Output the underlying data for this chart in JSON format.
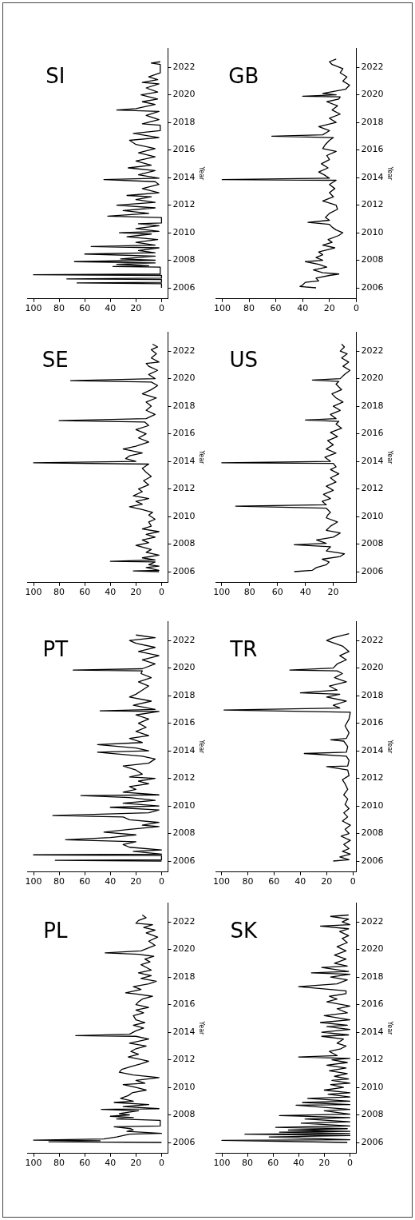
{
  "chart_data": [
    {
      "type": "line",
      "title": "PL",
      "ylabel": "Year",
      "ylim": [
        2005.2,
        2023.4
      ],
      "yticks": [
        2006,
        2008,
        2010,
        2012,
        2014,
        2016,
        2018,
        2020,
        2022
      ],
      "xlim": [
        105,
        -5
      ],
      "xticks": [
        0,
        20,
        40,
        60,
        80,
        100
      ],
      "color": "#000000",
      "values": [
        2006.0,
        2006.05,
        2006.12,
        2006.17,
        2006.25,
        2006.4,
        2006.5,
        2006.6,
        2006.66,
        2006.8,
        2006.9,
        2007.0,
        2007.14,
        2007.2,
        2007.6,
        2007.7,
        2007.8,
        2007.9,
        2008.0,
        2008.1,
        2008.3,
        2008.4,
        2008.45,
        2008.6,
        2008.75,
        2008.9,
        2009.0,
        2009.2,
        2009.4,
        2009.6,
        2009.8,
        2010.0,
        2010.2,
        2010.3,
        2010.5,
        2010.7,
        2010.9,
        2011.1,
        2011.3,
        2011.5,
        2011.7,
        2011.9,
        2012.1,
        2012.2,
        2012.4,
        2012.6,
        2012.8,
        2013.0,
        2013.2,
        2013.5,
        2013.7,
        2013.75,
        2013.85,
        2014.1,
        2014.3,
        2014.5,
        2014.7,
        2014.9,
        2015.2,
        2015.4,
        2015.6,
        2015.8,
        2016.0,
        2016.2,
        2016.4,
        2016.6,
        2016.75,
        2016.85,
        2017.1,
        2017.3,
        2017.5,
        2017.7,
        2017.9,
        2018.1,
        2018.3,
        2018.5,
        2018.7,
        2018.9,
        2019.1,
        2019.3,
        2019.5,
        2019.65,
        2019.75,
        2019.9,
        2020.3,
        2020.6,
        2020.9,
        2021.2,
        2021.4,
        2021.6,
        2021.8,
        2021.9,
        2022.1,
        2022.3,
        2022.5
      ],
      "x": [
        0,
        88,
        48,
        100,
        45,
        35,
        30,
        25,
        0,
        27,
        22,
        24,
        37,
        1,
        1,
        35,
        22,
        40,
        25,
        33,
        18,
        47,
        2,
        30,
        10,
        37,
        22,
        32,
        26,
        23,
        12,
        20,
        30,
        13,
        20,
        2,
        22,
        33,
        31,
        24,
        16,
        10,
        20,
        26,
        18,
        24,
        20,
        12,
        25,
        10,
        20,
        67,
        25,
        20,
        14,
        22,
        13,
        20,
        22,
        14,
        20,
        10,
        20,
        18,
        15,
        7,
        18,
        28,
        16,
        22,
        10,
        4,
        16,
        8,
        18,
        8,
        12,
        16,
        9,
        13,
        6,
        18,
        44,
        16,
        5,
        10,
        3,
        12,
        5,
        14,
        7,
        20,
        18,
        12,
        15
      ]
    },
    {
      "type": "line",
      "title": "PT",
      "ylabel": "Year",
      "ylim": [
        2005.2,
        2023.4
      ],
      "yticks": [
        2006,
        2008,
        2010,
        2012,
        2014,
        2016,
        2018,
        2020,
        2022
      ],
      "xlim": [
        105,
        -5
      ],
      "xticks": [
        0,
        20,
        40,
        60,
        80,
        100
      ],
      "color": "#000000",
      "values": [
        2006.0,
        2006.05,
        2006.1,
        2006.4,
        2006.45,
        2006.5,
        2006.7,
        2006.8,
        2007.0,
        2007.2,
        2007.4,
        2007.55,
        2007.7,
        2007.9,
        2008.1,
        2008.3,
        2008.5,
        2008.6,
        2008.8,
        2009.0,
        2009.2,
        2009.3,
        2009.5,
        2009.7,
        2009.9,
        2010.0,
        2010.2,
        2010.4,
        2010.6,
        2010.75,
        2010.8,
        2011.0,
        2011.2,
        2011.4,
        2011.6,
        2011.8,
        2012.0,
        2012.1,
        2012.3,
        2012.6,
        2012.9,
        2013.1,
        2013.4,
        2013.6,
        2013.9,
        2014.0,
        2014.2,
        2014.45,
        2014.6,
        2014.9,
        2015.1,
        2015.4,
        2015.7,
        2016.0,
        2016.3,
        2016.6,
        2016.85,
        2016.9,
        2017.0,
        2017.3,
        2017.6,
        2017.9,
        2018.1,
        2018.4,
        2018.7,
        2019.0,
        2019.3,
        2019.6,
        2019.8,
        2019.85,
        2019.95,
        2020.3,
        2020.6,
        2020.9,
        2021.2,
        2021.5,
        2021.8,
        2022.0,
        2022.2,
        2022.4
      ],
      "x": [
        0,
        83,
        0,
        0,
        100,
        0,
        22,
        0,
        25,
        30,
        20,
        75,
        40,
        20,
        45,
        25,
        2,
        15,
        2,
        25,
        30,
        85,
        10,
        2,
        40,
        2,
        30,
        5,
        25,
        63,
        2,
        30,
        20,
        25,
        10,
        18,
        5,
        25,
        15,
        20,
        30,
        10,
        5,
        15,
        50,
        10,
        20,
        50,
        15,
        25,
        10,
        20,
        12,
        18,
        10,
        20,
        2,
        48,
        5,
        22,
        8,
        25,
        20,
        15,
        10,
        18,
        8,
        16,
        15,
        69,
        15,
        5,
        15,
        2,
        18,
        5,
        20,
        25,
        5,
        20
      ]
    },
    {
      "type": "line",
      "title": "SE",
      "ylabel": "Year",
      "ylim": [
        2005.2,
        2023.4
      ],
      "yticks": [
        2006,
        2008,
        2010,
        2012,
        2014,
        2016,
        2018,
        2020,
        2022
      ],
      "xlim": [
        105,
        -5
      ],
      "xticks": [
        0,
        20,
        40,
        60,
        80,
        100
      ],
      "color": "#000000",
      "values": [
        2006.0,
        2006.05,
        2006.1,
        2006.3,
        2006.4,
        2006.5,
        2006.7,
        2006.75,
        2006.85,
        2007.0,
        2007.2,
        2007.4,
        2007.6,
        2007.9,
        2008.1,
        2008.3,
        2008.5,
        2008.7,
        2008.9,
        2009.1,
        2009.3,
        2009.6,
        2009.8,
        2010.1,
        2010.3,
        2010.5,
        2010.7,
        2010.9,
        2011.1,
        2011.3,
        2011.5,
        2011.8,
        2012.0,
        2012.3,
        2012.6,
        2012.9,
        2013.2,
        2013.5,
        2013.8,
        2013.9,
        2014.0,
        2014.2,
        2014.4,
        2014.6,
        2014.9,
        2015.1,
        2015.4,
        2015.7,
        2016.0,
        2016.3,
        2016.6,
        2016.85,
        2016.95,
        2017.1,
        2017.4,
        2017.7,
        2018.0,
        2018.3,
        2018.6,
        2018.9,
        2019.2,
        2019.5,
        2019.75,
        2019.85,
        2020.0,
        2020.3,
        2020.6,
        2020.9,
        2021.1,
        2021.2,
        2021.5,
        2021.8,
        2022.1,
        2022.3,
        2022.5
      ],
      "x": [
        2,
        22,
        2,
        12,
        2,
        10,
        5,
        40,
        5,
        15,
        2,
        12,
        8,
        20,
        10,
        15,
        5,
        12,
        2,
        15,
        8,
        10,
        5,
        10,
        7,
        15,
        25,
        15,
        20,
        10,
        22,
        15,
        18,
        10,
        14,
        8,
        12,
        15,
        10,
        100,
        20,
        28,
        25,
        15,
        30,
        20,
        10,
        18,
        12,
        20,
        10,
        13,
        80,
        12,
        5,
        12,
        8,
        12,
        4,
        15,
        8,
        3,
        8,
        71,
        5,
        10,
        3,
        10,
        12,
        2,
        8,
        4,
        8,
        3,
        7
      ]
    },
    {
      "type": "line",
      "title": "SI",
      "ylabel": "Year",
      "ylim": [
        2005.2,
        2023.4
      ],
      "yticks": [
        2006,
        2008,
        2010,
        2012,
        2014,
        2016,
        2018,
        2020,
        2022
      ],
      "xlim": [
        105,
        -5
      ],
      "xticks": [
        0,
        20,
        40,
        60,
        80,
        100
      ],
      "color": "#000000",
      "values": [
        2006.0,
        2006.3,
        2006.35,
        2006.4,
        2006.6,
        2006.65,
        2006.7,
        2006.9,
        2006.95,
        2007.0,
        2007.5,
        2007.55,
        2007.6,
        2007.7,
        2007.8,
        2007.9,
        2008.0,
        2008.1,
        2008.3,
        2008.45,
        2008.55,
        2008.7,
        2008.9,
        2009.0,
        2009.1,
        2009.3,
        2009.5,
        2009.7,
        2009.9,
        2010.0,
        2010.1,
        2010.3,
        2010.5,
        2010.65,
        2010.7,
        2011.1,
        2011.2,
        2011.4,
        2011.6,
        2011.8,
        2012.0,
        2012.2,
        2012.4,
        2012.6,
        2012.7,
        2012.9,
        2013.2,
        2013.5,
        2013.7,
        2013.85,
        2013.95,
        2014.2,
        2014.5,
        2014.7,
        2014.9,
        2015.2,
        2015.5,
        2015.8,
        2016.1,
        2016.4,
        2016.7,
        2016.9,
        2017.2,
        2017.4,
        2017.8,
        2017.9,
        2018.2,
        2018.5,
        2018.8,
        2018.9,
        2019.0,
        2019.3,
        2019.5,
        2019.7,
        2020.0,
        2020.2,
        2020.5,
        2020.8,
        2020.9,
        2021.1,
        2021.3,
        2021.6,
        2022.2,
        2022.3,
        2022.4
      ],
      "x": [
        0,
        0,
        66,
        0,
        0,
        74,
        0,
        0,
        100,
        1,
        1,
        38,
        10,
        35,
        5,
        68,
        5,
        32,
        5,
        60,
        5,
        18,
        2,
        55,
        5,
        20,
        3,
        27,
        8,
        33,
        2,
        20,
        2,
        18,
        0,
        0,
        42,
        10,
        30,
        5,
        35,
        5,
        20,
        8,
        27,
        2,
        15,
        2,
        5,
        45,
        2,
        18,
        5,
        26,
        8,
        20,
        5,
        18,
        5,
        20,
        25,
        2,
        22,
        1,
        1,
        15,
        2,
        12,
        2,
        35,
        20,
        5,
        15,
        3,
        16,
        3,
        12,
        2,
        15,
        3,
        10,
        1,
        1,
        8,
        1
      ]
    },
    {
      "type": "line",
      "title": "SK",
      "ylabel": "Year",
      "ylim": [
        2005.2,
        2023.4
      ],
      "yticks": [
        2006,
        2008,
        2010,
        2012,
        2014,
        2016,
        2018,
        2020,
        2022
      ],
      "xlim": [
        105,
        -5
      ],
      "xticks": [
        0,
        20,
        40,
        60,
        80,
        100
      ],
      "color": "#000000",
      "values": [
        2006.0,
        2006.15,
        2006.2,
        2006.4,
        2006.5,
        2006.6,
        2006.65,
        2006.75,
        2006.8,
        2006.9,
        2007.0,
        2007.1,
        2007.2,
        2007.4,
        2007.5,
        2007.7,
        2007.8,
        2007.95,
        2008.05,
        2008.3,
        2008.4,
        2008.7,
        2008.75,
        2008.9,
        2009.0,
        2009.2,
        2009.3,
        2009.5,
        2009.6,
        2009.8,
        2010.0,
        2010.2,
        2010.3,
        2010.5,
        2010.6,
        2010.8,
        2011.0,
        2011.2,
        2011.4,
        2011.6,
        2011.8,
        2012.0,
        2012.1,
        2012.2,
        2012.3,
        2012.6,
        2012.8,
        2013.0,
        2013.2,
        2013.5,
        2013.7,
        2013.8,
        2014.0,
        2014.2,
        2014.4,
        2014.5,
        2014.7,
        2014.9,
        2015.2,
        2015.4,
        2015.7,
        2015.9,
        2016.2,
        2016.4,
        2016.6,
        2016.8,
        2017.0,
        2017.3,
        2017.5,
        2017.8,
        2018.0,
        2018.2,
        2018.3,
        2018.4,
        2018.7,
        2018.8,
        2019.0,
        2019.3,
        2019.6,
        2019.9,
        2020.2,
        2020.5,
        2020.8,
        2021.0,
        2021.3,
        2021.5,
        2021.7,
        2021.8,
        2022.0,
        2022.2,
        2022.4,
        2022.5
      ],
      "x": [
        2,
        100,
        0,
        63,
        0,
        82,
        0,
        55,
        0,
        48,
        2,
        58,
        0,
        38,
        0,
        35,
        0,
        55,
        0,
        20,
        0,
        42,
        0,
        37,
        0,
        33,
        0,
        17,
        0,
        20,
        5,
        15,
        0,
        14,
        1,
        12,
        2,
        16,
        3,
        18,
        2,
        14,
        0,
        40,
        10,
        16,
        7,
        3,
        10,
        5,
        22,
        1,
        22,
        0,
        18,
        2,
        23,
        0,
        20,
        2,
        10,
        0,
        18,
        10,
        16,
        3,
        3,
        40,
        10,
        2,
        15,
        0,
        30,
        1,
        22,
        2,
        12,
        3,
        12,
        3,
        10,
        2,
        6,
        1,
        8,
        1,
        23,
        0,
        6,
        1,
        15,
        1
      ]
    },
    {
      "type": "line",
      "title": "TR",
      "ylabel": "Year",
      "ylim": [
        2005.2,
        2023.4
      ],
      "yticks": [
        2006,
        2008,
        2010,
        2012,
        2014,
        2016,
        2018,
        2020,
        2022
      ],
      "xlim": [
        104.5,
        -2.5
      ],
      "xticks": [
        0,
        20,
        40,
        60,
        80,
        100
      ],
      "color": "#000000",
      "values": [
        2006.0,
        2006.1,
        2006.3,
        2006.5,
        2006.7,
        2006.9,
        2007.2,
        2007.5,
        2007.8,
        2008.0,
        2008.3,
        2008.6,
        2008.9,
        2009.2,
        2009.5,
        2009.8,
        2010.1,
        2010.5,
        2010.8,
        2011.2,
        2011.6,
        2011.9,
        2012.2,
        2012.6,
        2012.85,
        2012.9,
        2013.3,
        2013.6,
        2013.8,
        2013.9,
        2014.3,
        2014.7,
        2014.8,
        2014.9,
        2015.3,
        2015.8,
        2016.3,
        2016.8,
        2016.95,
        2017.1,
        2017.3,
        2017.6,
        2017.9,
        2018.1,
        2018.2,
        2018.4,
        2018.7,
        2019.0,
        2019.3,
        2019.6,
        2019.8,
        2019.85,
        2020.0,
        2020.3,
        2020.6,
        2020.9,
        2021.2,
        2021.6,
        2022.0,
        2022.2,
        2022.5
      ],
      "x": [
        15,
        3,
        10,
        2,
        8,
        3,
        7,
        2,
        9,
        3,
        6,
        2,
        8,
        4,
        7,
        3,
        6,
        4,
        7,
        4,
        6,
        8,
        3,
        4,
        20,
        4,
        3,
        5,
        37,
        5,
        4,
        7,
        17,
        5,
        3,
        6,
        3,
        2,
        98,
        10,
        15,
        5,
        20,
        10,
        40,
        12,
        18,
        5,
        14,
        8,
        12,
        48,
        15,
        12,
        5,
        10,
        3,
        8,
        20,
        15,
        3
      ]
    },
    {
      "type": "line",
      "title": "US",
      "ylabel": "Year",
      "ylim": [
        2005.2,
        2023.4
      ],
      "yticks": [
        2006,
        2008,
        2010,
        2012,
        2014,
        2016,
        2018,
        2020,
        2022
      ],
      "xlim": [
        104.5,
        3.5
      ],
      "xticks": [
        20,
        40,
        60,
        80,
        100
      ],
      "color": "#000000",
      "values": [
        2006.0,
        2006.1,
        2006.3,
        2006.5,
        2006.7,
        2006.9,
        2007.1,
        2007.3,
        2007.5,
        2007.8,
        2007.95,
        2008.05,
        2008.3,
        2008.5,
        2008.8,
        2009.0,
        2009.3,
        2009.6,
        2009.9,
        2010.1,
        2010.3,
        2010.6,
        2010.75,
        2010.85,
        2011.1,
        2011.3,
        2011.6,
        2011.9,
        2012.2,
        2012.5,
        2012.8,
        2013.1,
        2013.4,
        2013.6,
        2013.85,
        2013.9,
        2014.0,
        2014.3,
        2014.6,
        2014.9,
        2015.2,
        2015.5,
        2015.8,
        2016.1,
        2016.4,
        2016.7,
        2016.9,
        2017.0,
        2017.1,
        2017.4,
        2017.7,
        2018.0,
        2018.3,
        2018.6,
        2018.9,
        2019.2,
        2019.6,
        2019.8,
        2019.9,
        2020.0,
        2020.3,
        2020.6,
        2020.9,
        2021.2,
        2021.5,
        2021.8,
        2022.0,
        2022.3,
        2022.5
      ],
      "x": [
        48,
        35,
        32,
        25,
        23,
        28,
        15,
        12,
        25,
        22,
        48,
        25,
        32,
        20,
        15,
        25,
        22,
        17,
        25,
        24,
        22,
        25,
        90,
        25,
        28,
        22,
        27,
        20,
        25,
        18,
        22,
        16,
        22,
        18,
        20,
        100,
        22,
        26,
        18,
        25,
        20,
        24,
        17,
        22,
        14,
        18,
        16,
        40,
        18,
        22,
        15,
        20,
        13,
        18,
        21,
        14,
        18,
        16,
        35,
        15,
        12,
        8,
        13,
        9,
        14,
        10,
        15,
        12,
        14
      ]
    },
    {
      "type": "line",
      "title": "GB",
      "ylabel": "Year",
      "ylim": [
        2005.2,
        2023.4
      ],
      "yticks": [
        2006,
        2008,
        2010,
        2012,
        2014,
        2016,
        2018,
        2020,
        2022
      ],
      "xlim": [
        105,
        0
      ],
      "xticks": [
        0,
        20,
        40,
        60,
        80,
        100
      ],
      "color": "#000000",
      "values": [
        2006.0,
        2006.1,
        2006.2,
        2006.4,
        2006.5,
        2006.7,
        2006.9,
        2007.0,
        2007.1,
        2007.3,
        2007.5,
        2007.7,
        2007.9,
        2008.0,
        2008.2,
        2008.4,
        2008.6,
        2008.9,
        2009.1,
        2009.3,
        2009.5,
        2009.8,
        2010.0,
        2010.2,
        2010.4,
        2010.6,
        2010.75,
        2010.9,
        2011.1,
        2011.4,
        2011.7,
        2012.0,
        2012.3,
        2012.6,
        2012.9,
        2013.2,
        2013.5,
        2013.8,
        2013.85,
        2013.95,
        2014.2,
        2014.4,
        2014.7,
        2015.0,
        2015.3,
        2015.6,
        2015.9,
        2016.1,
        2016.4,
        2016.7,
        2016.9,
        2017.0,
        2017.1,
        2017.4,
        2017.7,
        2018.0,
        2018.3,
        2018.6,
        2018.9,
        2019.2,
        2019.5,
        2019.7,
        2019.85,
        2019.9,
        2020.0,
        2020.1,
        2020.4,
        2020.7,
        2021.0,
        2021.3,
        2021.6,
        2021.9,
        2022.2,
        2022.4,
        2022.6
      ],
      "x": [
        30,
        42,
        40,
        38,
        28,
        30,
        20,
        13,
        25,
        32,
        22,
        28,
        38,
        25,
        30,
        25,
        28,
        16,
        25,
        18,
        21,
        13,
        10,
        15,
        18,
        20,
        36,
        20,
        23,
        20,
        14,
        15,
        25,
        17,
        20,
        16,
        20,
        15,
        100,
        20,
        24,
        28,
        21,
        26,
        20,
        22,
        15,
        25,
        23,
        20,
        17,
        63,
        25,
        20,
        28,
        15,
        20,
        12,
        18,
        14,
        22,
        13,
        12,
        40,
        15,
        25,
        8,
        5,
        10,
        7,
        12,
        10,
        18,
        20,
        15
      ]
    }
  ]
}
